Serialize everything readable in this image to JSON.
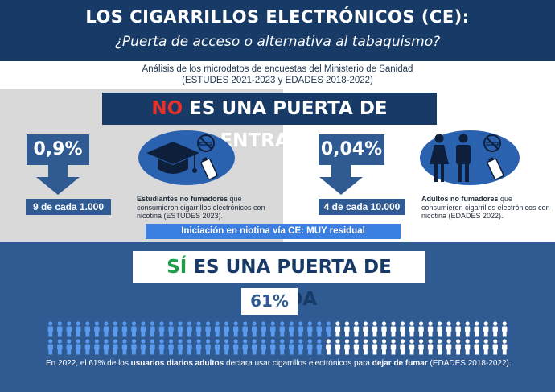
{
  "header": {
    "title": "LOS CIGARRILLOS ELECTRÓNICOS (CE):",
    "subtitle": "¿Puerta de acceso o alternativa al tabaquismo?",
    "source_line1": "Análisis de los microdatos de encuestas del Ministerio de Sanidad",
    "source_line2": "(ESTUDES 2021-2023 y EDADES 2018-2022)"
  },
  "entry": {
    "banner_prefix": "NO",
    "banner_rest": " ES UNA PUERTA DE ENTRADA",
    "students": {
      "stat": "0,9%",
      "ratio": "9 de cada 1.000",
      "caption_bold": "Estudiantes no fumadores",
      "caption_rest": " que consumieron cigarrillos electrónicos con nicotina (ESTUDES 2023).",
      "icons": [
        "graduation-cap-icon",
        "no-smoking-icon",
        "vape-device-icon"
      ]
    },
    "adults": {
      "stat": "0,04%",
      "ratio": "4 de cada 10.000",
      "caption_bold": "Adultos no fumadores",
      "caption_rest": " que consumieron cigarrillos electrónicos con nicotina (EDADES 2022).",
      "icons": [
        "woman-icon",
        "man-icon",
        "no-smoking-icon",
        "vape-device-icon"
      ]
    },
    "niche_label": "Iniciación en niotina vía CE: MUY residual"
  },
  "exit": {
    "banner_prefix": "SÍ",
    "banner_rest": " ES UNA PUERTA DE SALIDA",
    "percent": "61%",
    "people_total": 100,
    "people_highlighted": 61,
    "footer_part1": "En 2022, el 61% de los ",
    "footer_bold1": "usuarios diarios adultos",
    "footer_part2": " declara usar cigarrillos electrónicos para ",
    "footer_bold2": "dejar de fumar",
    "footer_part3": " (EDADES 2018-2022).",
    "colors": {
      "highlight": "#5b9bef",
      "rest": "#ffffff"
    }
  },
  "colors": {
    "navy": "#173a66",
    "mid_blue": "#2f5a92",
    "accent_red": "#e8312a",
    "accent_green": "#1e9e4a",
    "bright_blue": "#3b7fe0"
  }
}
